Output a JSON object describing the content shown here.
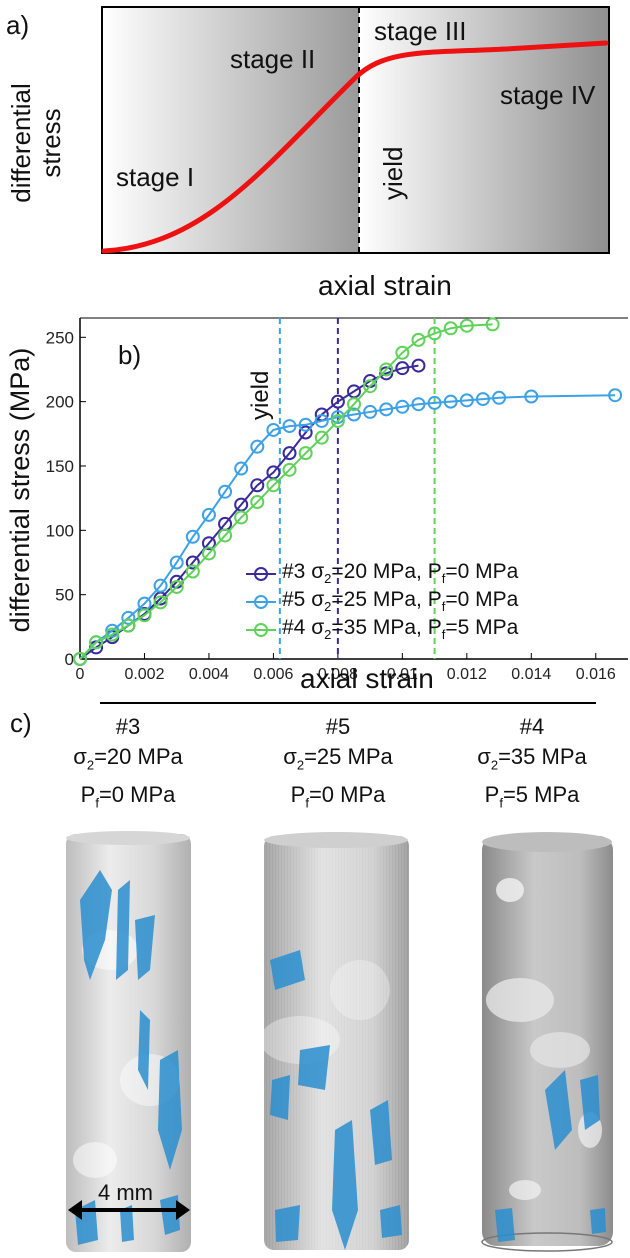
{
  "panel_a": {
    "label": "a)",
    "ylabel_line1": "differential",
    "ylabel_line2": "stress",
    "xlabel": "axial strain",
    "stages": [
      "stage I",
      "stage II",
      "stage III",
      "stage IV"
    ],
    "yield_label": "yield",
    "curve_color": "#ee1111"
  },
  "panel_b": {
    "label": "b)",
    "yield_label": "yield",
    "xlabel": "axial strain",
    "ylabel": "differential stress (MPa)"
  },
  "chart_data": {
    "type": "scatter",
    "xlabel": "axial strain",
    "ylabel": "differential stress (MPa)",
    "xlim": [
      0,
      0.017
    ],
    "ylim": [
      0,
      265
    ],
    "x_ticks": [
      0,
      0.002,
      0.004,
      0.006,
      0.008,
      0.01,
      0.012,
      0.014,
      0.016
    ],
    "x_tick_labels": [
      "0",
      "0.002",
      "0.004",
      "0.006",
      "0.008",
      "0.01",
      "0.012",
      "0.014",
      "0.016"
    ],
    "y_ticks": [
      0,
      50,
      100,
      150,
      200,
      250
    ],
    "y_tick_labels": [
      "0",
      "50",
      "100",
      "150",
      "200",
      "250"
    ],
    "grid": false,
    "legend_placement": "bottom-right",
    "legend": [
      {
        "sample": "#3",
        "sigma": "σ",
        "sub2": "2",
        "sigma_val": "=20 MPa, P",
        "subf": "f",
        "pf_val": "=0 MPa"
      },
      {
        "sample": "#5",
        "sigma": "σ",
        "sub2": "2",
        "sigma_val": "=25 MPa, P",
        "subf": "f",
        "pf_val": "=0 MPa"
      },
      {
        "sample": "#4",
        "sigma": "σ",
        "sub2": "2",
        "sigma_val": "=35 MPa, P",
        "subf": "f",
        "pf_val": "=5 MPa"
      }
    ],
    "series": [
      {
        "color": "#3a2a9c",
        "yield_x": 0.008,
        "x": [
          0,
          0.0005,
          0.001,
          0.0015,
          0.002,
          0.0025,
          0.003,
          0.0035,
          0.004,
          0.0045,
          0.005,
          0.0055,
          0.006,
          0.0065,
          0.007,
          0.0075,
          0.008,
          0.0085,
          0.009,
          0.0095,
          0.01,
          0.0105
        ],
        "y": [
          0,
          9,
          17,
          26,
          35,
          47,
          60,
          75,
          90,
          105,
          120,
          135,
          145,
          160,
          176,
          190,
          200,
          208,
          216,
          222,
          226,
          228
        ]
      },
      {
        "color": "#3da1e6",
        "yield_x": 0.0062,
        "x": [
          0,
          0.0005,
          0.001,
          0.0015,
          0.002,
          0.0025,
          0.003,
          0.0035,
          0.004,
          0.0045,
          0.005,
          0.0055,
          0.006,
          0.0065,
          0.007,
          0.0075,
          0.008,
          0.0085,
          0.009,
          0.0095,
          0.01,
          0.0105,
          0.011,
          0.0115,
          0.012,
          0.0125,
          0.013,
          0.014,
          0.0166
        ],
        "y": [
          0,
          13,
          22,
          32,
          43,
          57,
          75,
          95,
          112,
          130,
          148,
          165,
          178,
          181,
          182,
          185,
          188,
          190,
          192,
          194,
          196,
          198,
          199,
          200,
          201,
          202,
          203,
          204,
          205
        ]
      },
      {
        "color": "#5fd25a",
        "yield_x": 0.011,
        "x": [
          0,
          0.0005,
          0.001,
          0.0015,
          0.002,
          0.0025,
          0.003,
          0.0035,
          0.004,
          0.0045,
          0.005,
          0.0055,
          0.006,
          0.0065,
          0.007,
          0.0075,
          0.008,
          0.0085,
          0.009,
          0.0095,
          0.01,
          0.0105,
          0.011,
          0.0115,
          0.012,
          0.0128
        ],
        "y": [
          0,
          13,
          19,
          26,
          34,
          44,
          56,
          68,
          82,
          96,
          110,
          122,
          135,
          147,
          160,
          172,
          185,
          198,
          212,
          225,
          238,
          248,
          253,
          257,
          259,
          260
        ]
      }
    ]
  },
  "panel_c": {
    "label": "c)",
    "scale_label": "4 mm",
    "samples": [
      {
        "id": "#3",
        "sigma": "σ",
        "sub2": "2",
        "sigma_val": "=20 MPa",
        "p": "P",
        "subf": "f",
        "p_val": "=0 MPa"
      },
      {
        "id": "#5",
        "sigma": "σ",
        "sub2": "2",
        "sigma_val": "=25 MPa",
        "p": "P",
        "subf": "f",
        "p_val": "=0 MPa"
      },
      {
        "id": "#4",
        "sigma": "σ",
        "sub2": "2",
        "sigma_val": "=35 MPa",
        "p": "P",
        "subf": "f",
        "p_val": "=5 MPa"
      }
    ],
    "crack_color": "#2a8fcf"
  }
}
